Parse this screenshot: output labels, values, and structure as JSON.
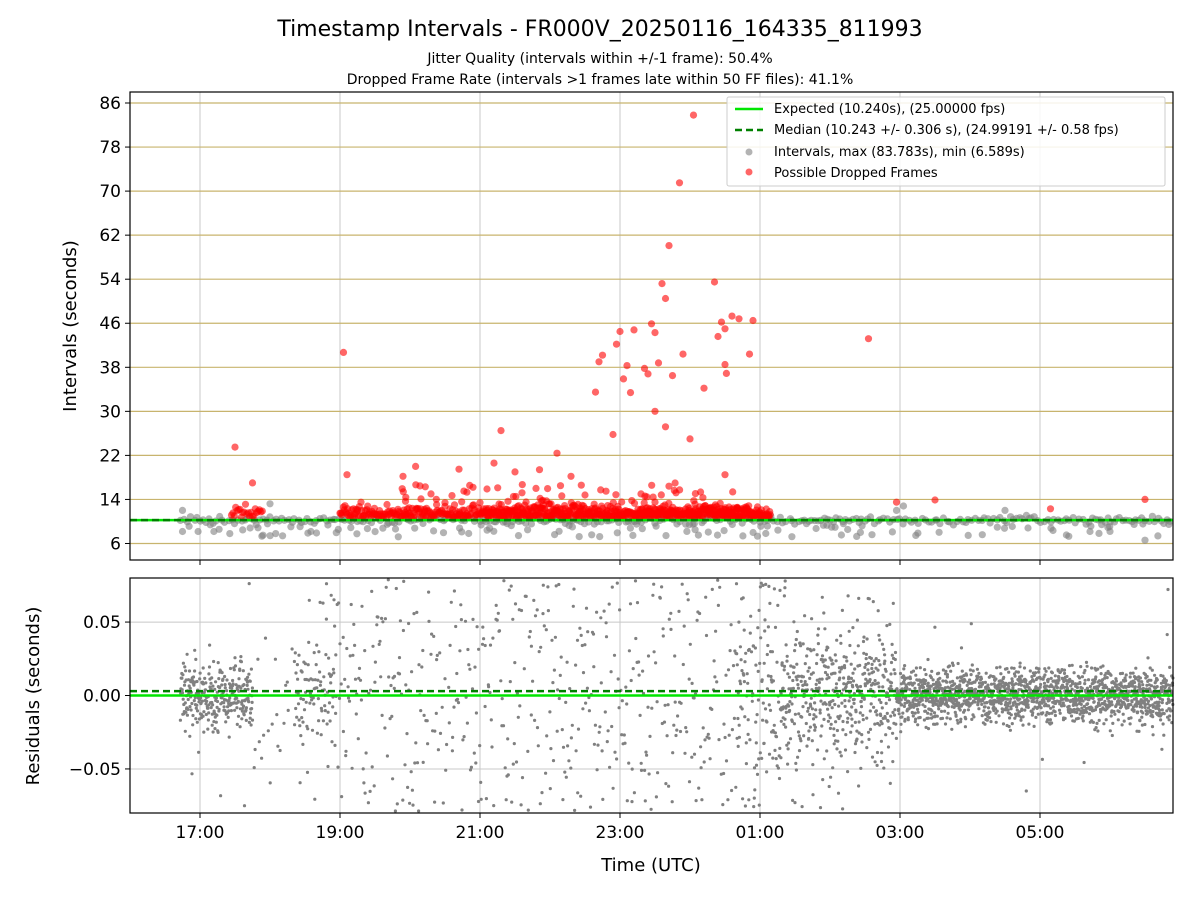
{
  "title": "Timestamp Intervals - FR000V_20250116_164335_811993",
  "subtitle_lines": [
    "Jitter Quality (intervals within +/-1 frame): 50.4%",
    "Dropped Frame Rate (intervals >1 frames late within 50 FF files): 41.1%"
  ],
  "colors": {
    "expected": "#00e600",
    "median": "#008000",
    "intervals": "#808080",
    "dropped": "#ff0000",
    "hgrid_top": "#c8b46e",
    "vgrid": "#c8c8c8"
  },
  "chart_data": [
    {
      "type": "scatter",
      "panel": "top",
      "ylabel": "Intervals (seconds)",
      "ylim": [
        3,
        88
      ],
      "y_ticks": [
        "6",
        "14",
        "22",
        "30",
        "38",
        "46",
        "54",
        "62",
        "70",
        "78",
        "86"
      ],
      "grid": "on",
      "legend_placement": "top-right",
      "legend": {
        "expected": "Expected (10.240s), (25.00000 fps)",
        "median": "Median (10.243 +/- 0.306 s), (24.99191 +/- 0.58 fps)",
        "intervals": "Intervals, max (83.783s), min (6.589s)",
        "dropped": "Possible Dropped Frames"
      },
      "expected_line": 10.24,
      "median_line": 10.243,
      "dropped_points": [
        [
          17.5,
          23.5
        ],
        [
          17.75,
          17.0
        ],
        [
          19.05,
          40.7
        ],
        [
          19.1,
          18.5
        ],
        [
          20.08,
          20.0
        ],
        [
          19.9,
          18.2
        ],
        [
          20.6,
          14.7
        ],
        [
          21.2,
          20.6
        ],
        [
          21.3,
          26.5
        ],
        [
          21.5,
          19.0
        ],
        [
          21.85,
          19.4
        ],
        [
          22.1,
          22.4
        ],
        [
          22.3,
          18.2
        ],
        [
          22.65,
          33.5
        ],
        [
          22.7,
          39.0
        ],
        [
          22.75,
          40.2
        ],
        [
          22.9,
          25.8
        ],
        [
          22.95,
          42.2
        ],
        [
          23.0,
          44.5
        ],
        [
          23.05,
          35.9
        ],
        [
          23.1,
          38.3
        ],
        [
          23.15,
          33.4
        ],
        [
          23.2,
          44.8
        ],
        [
          23.35,
          37.8
        ],
        [
          23.4,
          36.8
        ],
        [
          23.45,
          45.9
        ],
        [
          23.5,
          44.3
        ],
        [
          23.5,
          30.0
        ],
        [
          23.55,
          38.8
        ],
        [
          23.6,
          53.2
        ],
        [
          23.65,
          27.2
        ],
        [
          23.65,
          50.5
        ],
        [
          23.7,
          60.1
        ],
        [
          23.75,
          36.5
        ],
        [
          23.85,
          71.5
        ],
        [
          23.9,
          40.4
        ],
        [
          24.0,
          25.0
        ],
        [
          24.05,
          83.8
        ],
        [
          24.2,
          34.2
        ],
        [
          24.35,
          53.5
        ],
        [
          24.4,
          43.6
        ],
        [
          24.45,
          46.2
        ],
        [
          24.5,
          45.0
        ],
        [
          24.5,
          38.5
        ],
        [
          24.52,
          36.9
        ],
        [
          24.5,
          18.5
        ],
        [
          24.6,
          47.3
        ],
        [
          24.7,
          46.8
        ],
        [
          24.85,
          40.4
        ],
        [
          24.9,
          46.5
        ],
        [
          26.55,
          43.2
        ],
        [
          26.95,
          13.5
        ],
        [
          27.5,
          13.9
        ],
        [
          29.15,
          12.3
        ],
        [
          30.5,
          14.0
        ],
        [
          22.15,
          16.5
        ],
        [
          21.8,
          16.0
        ],
        [
          21.6,
          15.2
        ],
        [
          22.5,
          14.8
        ],
        [
          22.8,
          15.5
        ],
        [
          23.3,
          15.0
        ],
        [
          23.7,
          16.4
        ],
        [
          20.9,
          16.2
        ],
        [
          20.7,
          19.5
        ],
        [
          21.1,
          15.9
        ],
        [
          20.3,
          15.0
        ],
        [
          20.5,
          13.4
        ],
        [
          21.9,
          13.8
        ],
        [
          22.4,
          13.1
        ],
        [
          23.8,
          15.2
        ]
      ],
      "x_range_hours": [
        16.0,
        30.9
      ]
    },
    {
      "type": "scatter",
      "panel": "bottom",
      "ylabel": "Residuals (seconds)",
      "xlabel": "Time (UTC)",
      "ylim": [
        -0.08,
        0.08
      ],
      "y_ticks": [
        "0.05",
        "0.00",
        "−0.05"
      ],
      "y_tick_values": [
        0.05,
        0.0,
        -0.05
      ],
      "x_ticks": [
        "17:00",
        "19:00",
        "21:00",
        "23:00",
        "01:00",
        "03:00",
        "05:00"
      ],
      "x_tick_hours": [
        17,
        19,
        21,
        23,
        25,
        27,
        29
      ],
      "expected_line": 0.0,
      "median_line": 0.003,
      "grid": "on"
    }
  ]
}
